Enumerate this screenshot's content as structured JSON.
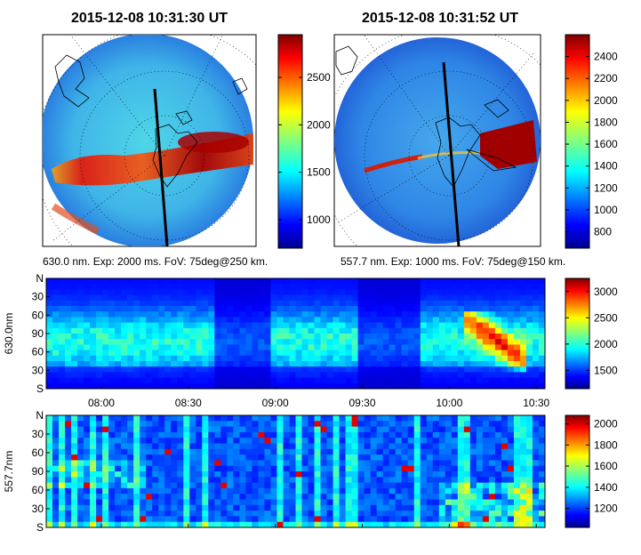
{
  "figure": {
    "colormap": "jet"
  },
  "chart_data": [
    {
      "type": "heatmap",
      "panel": "allsky-630",
      "title": "2015-12-08 10:31:30 UT",
      "caption": "630.0 nm. Exp: 2000 ms. FoV: 75deg@250 km.",
      "colorbar": {
        "ticks": [
          1000,
          1500,
          2000,
          2500
        ],
        "range": [
          700,
          2950
        ]
      }
    },
    {
      "type": "heatmap",
      "panel": "allsky-5577",
      "title": "2015-12-08 10:31:52 UT",
      "caption": "557.7 nm. Exp: 1000 ms. FoV: 75deg@150 km.",
      "colorbar": {
        "ticks": [
          800,
          1000,
          1200,
          1400,
          1600,
          1800,
          2000,
          2200,
          2400
        ],
        "range": [
          650,
          2600
        ]
      }
    },
    {
      "type": "heatmap",
      "panel": "keogram-630",
      "ylabel": "630.0nm",
      "y_ticks": [
        "N",
        "30",
        "60",
        "90",
        "60",
        "30",
        "S"
      ],
      "x_ticks": [
        "08:00",
        "08:30",
        "09:00",
        "09:30",
        "10:00",
        "10:30"
      ],
      "x_range": [
        "07:41",
        "10:33"
      ],
      "colorbar": {
        "ticks": [
          1500,
          2000,
          2500,
          3000
        ],
        "range": [
          1150,
          3250
        ]
      }
    },
    {
      "type": "heatmap",
      "panel": "keogram-5577",
      "ylabel": "557.7nm",
      "y_ticks": [
        "N",
        "30",
        "60",
        "90",
        "60",
        "30",
        "S"
      ],
      "x_range": [
        "07:41",
        "10:33"
      ],
      "colorbar": {
        "ticks": [
          1200,
          1400,
          1600,
          1800,
          2000
        ],
        "range": [
          1020,
          2080
        ]
      }
    }
  ]
}
